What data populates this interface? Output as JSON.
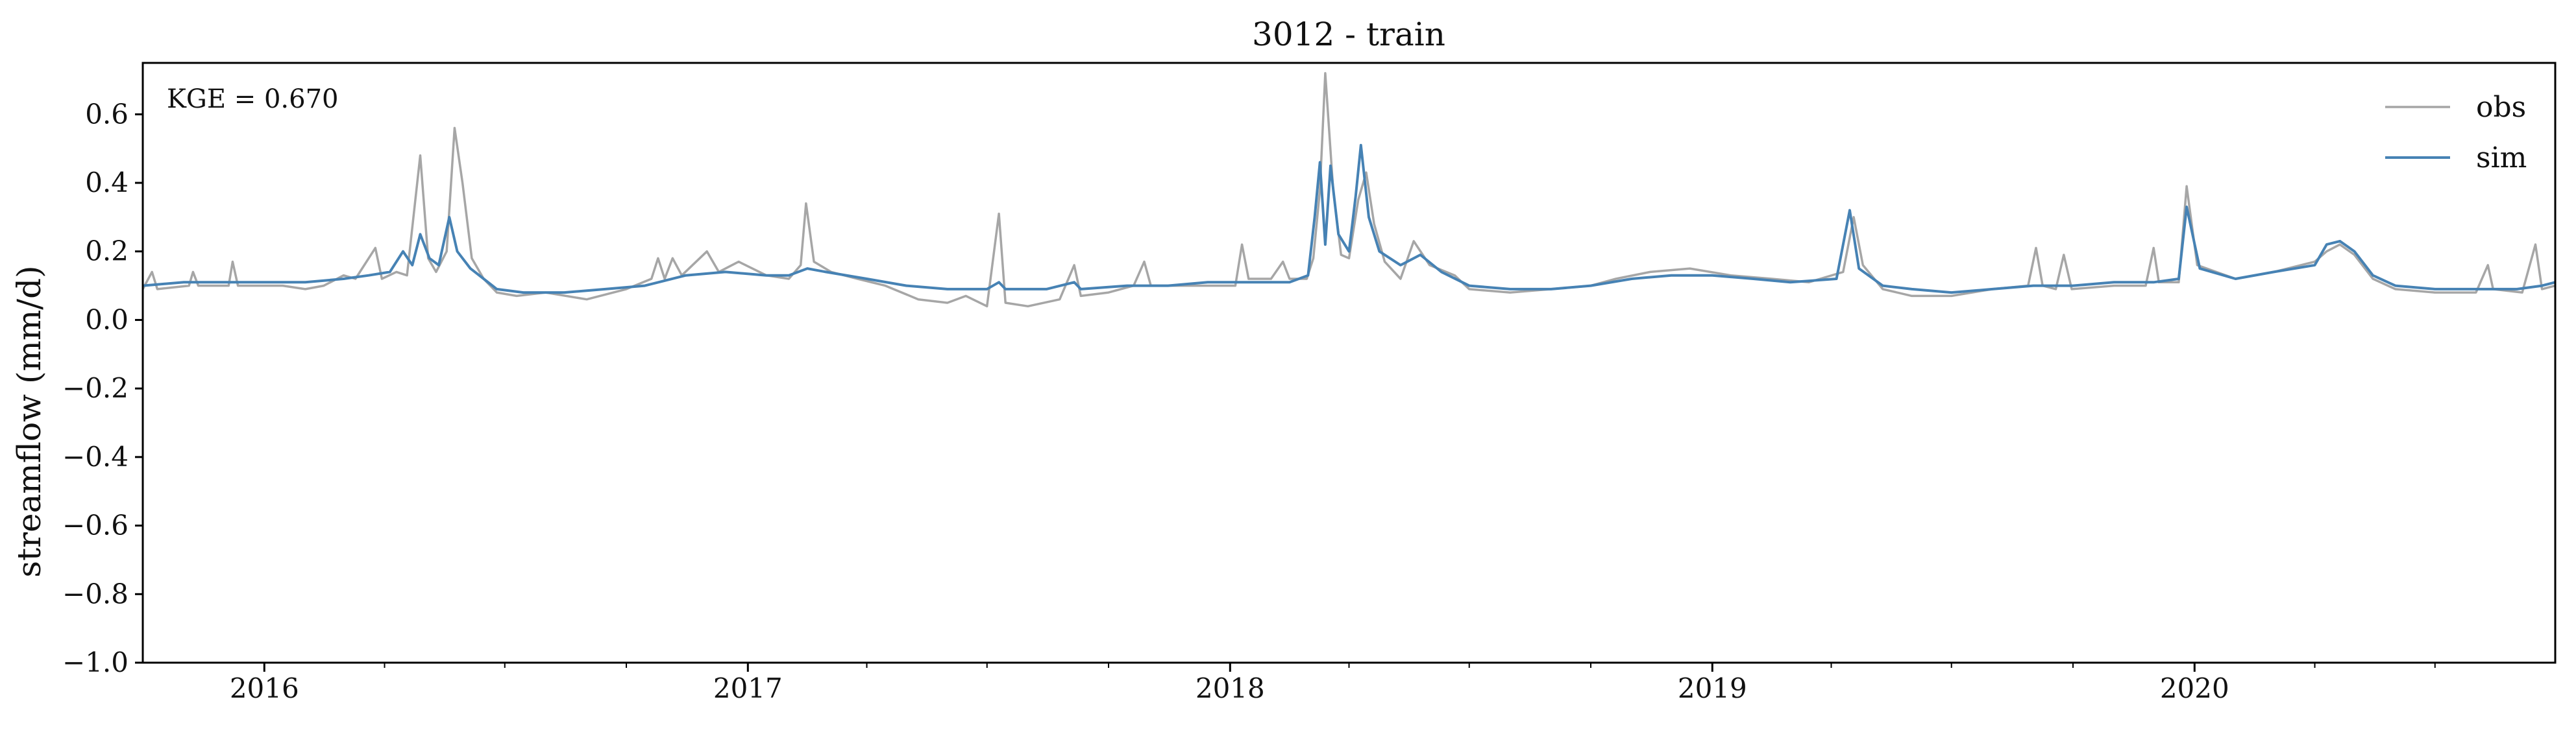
{
  "chart_data": {
    "type": "line",
    "title": "3012 - train",
    "xlabel": "",
    "ylabel": "streamflow (mm/d)",
    "annotation": "KGE = 0.670",
    "x_range": [
      "2015-10-01",
      "2020-09-30"
    ],
    "ylim": [
      -1.0,
      0.75
    ],
    "y_ticks": [
      0.6,
      0.4,
      0.2,
      0.0,
      -0.2,
      -0.4,
      -0.6,
      -0.8,
      -1.0
    ],
    "y_tick_labels": [
      "0.6",
      "0.4",
      "0.2",
      "0.0",
      "−0.2",
      "−0.4",
      "−0.6",
      "−0.8",
      "−1.0"
    ],
    "x_ticks": [
      "2016-01-01",
      "2017-01-01",
      "2018-01-01",
      "2019-01-01",
      "2020-01-01"
    ],
    "x_tick_labels": [
      "2016",
      "2017",
      "2018",
      "2019",
      "2020"
    ],
    "grid": false,
    "legend_position": "top-right",
    "series": [
      {
        "name": "obs",
        "color": "#a6a6a6",
        "points": [
          [
            "2015-10-01",
            0.09
          ],
          [
            "2015-10-08",
            0.14
          ],
          [
            "2015-10-12",
            0.09
          ],
          [
            "2015-11-05",
            0.1
          ],
          [
            "2015-11-08",
            0.14
          ],
          [
            "2015-11-12",
            0.1
          ],
          [
            "2015-12-05",
            0.1
          ],
          [
            "2015-12-08",
            0.17
          ],
          [
            "2015-12-12",
            0.1
          ],
          [
            "2016-01-15",
            0.1
          ],
          [
            "2016-02-01",
            0.09
          ],
          [
            "2016-02-15",
            0.1
          ],
          [
            "2016-03-01",
            0.13
          ],
          [
            "2016-03-10",
            0.12
          ],
          [
            "2016-03-25",
            0.21
          ],
          [
            "2016-03-30",
            0.12
          ],
          [
            "2016-04-10",
            0.14
          ],
          [
            "2016-04-18",
            0.13
          ],
          [
            "2016-04-28",
            0.48
          ],
          [
            "2016-05-04",
            0.18
          ],
          [
            "2016-05-10",
            0.14
          ],
          [
            "2016-05-18",
            0.2
          ],
          [
            "2016-05-24",
            0.56
          ],
          [
            "2016-05-30",
            0.4
          ],
          [
            "2016-06-06",
            0.18
          ],
          [
            "2016-06-15",
            0.12
          ],
          [
            "2016-06-25",
            0.08
          ],
          [
            "2016-07-10",
            0.07
          ],
          [
            "2016-08-01",
            0.08
          ],
          [
            "2016-09-01",
            0.06
          ],
          [
            "2016-10-01",
            0.09
          ],
          [
            "2016-10-20",
            0.12
          ],
          [
            "2016-10-25",
            0.18
          ],
          [
            "2016-10-30",
            0.12
          ],
          [
            "2016-11-05",
            0.18
          ],
          [
            "2016-11-12",
            0.13
          ],
          [
            "2016-12-01",
            0.2
          ],
          [
            "2016-12-10",
            0.14
          ],
          [
            "2016-12-25",
            0.17
          ],
          [
            "2017-01-15",
            0.13
          ],
          [
            "2017-02-01",
            0.12
          ],
          [
            "2017-02-10",
            0.16
          ],
          [
            "2017-02-14",
            0.34
          ],
          [
            "2017-02-20",
            0.17
          ],
          [
            "2017-03-05",
            0.14
          ],
          [
            "2017-03-25",
            0.12
          ],
          [
            "2017-04-15",
            0.1
          ],
          [
            "2017-05-10",
            0.06
          ],
          [
            "2017-06-01",
            0.05
          ],
          [
            "2017-06-15",
            0.07
          ],
          [
            "2017-07-01",
            0.04
          ],
          [
            "2017-07-10",
            0.31
          ],
          [
            "2017-07-15",
            0.05
          ],
          [
            "2017-08-01",
            0.04
          ],
          [
            "2017-08-25",
            0.06
          ],
          [
            "2017-09-05",
            0.16
          ],
          [
            "2017-09-10",
            0.07
          ],
          [
            "2017-10-01",
            0.08
          ],
          [
            "2017-10-20",
            0.1
          ],
          [
            "2017-10-28",
            0.17
          ],
          [
            "2017-11-02",
            0.1
          ],
          [
            "2017-12-15",
            0.1
          ],
          [
            "2018-01-05",
            0.1
          ],
          [
            "2018-01-10",
            0.22
          ],
          [
            "2018-01-15",
            0.12
          ],
          [
            "2018-02-01",
            0.12
          ],
          [
            "2018-02-10",
            0.17
          ],
          [
            "2018-02-15",
            0.12
          ],
          [
            "2018-02-28",
            0.12
          ],
          [
            "2018-03-05",
            0.18
          ],
          [
            "2018-03-10",
            0.38
          ],
          [
            "2018-03-14",
            0.72
          ],
          [
            "2018-03-20",
            0.38
          ],
          [
            "2018-03-26",
            0.19
          ],
          [
            "2018-04-01",
            0.18
          ],
          [
            "2018-04-08",
            0.35
          ],
          [
            "2018-04-14",
            0.43
          ],
          [
            "2018-04-20",
            0.28
          ],
          [
            "2018-04-28",
            0.17
          ],
          [
            "2018-05-10",
            0.12
          ],
          [
            "2018-05-20",
            0.23
          ],
          [
            "2018-06-01",
            0.16
          ],
          [
            "2018-06-20",
            0.13
          ],
          [
            "2018-07-01",
            0.09
          ],
          [
            "2018-08-01",
            0.08
          ],
          [
            "2018-09-01",
            0.09
          ],
          [
            "2018-10-01",
            0.1
          ],
          [
            "2018-10-20",
            0.12
          ],
          [
            "2018-11-15",
            0.14
          ],
          [
            "2018-12-15",
            0.15
          ],
          [
            "2019-01-15",
            0.13
          ],
          [
            "2019-02-15",
            0.12
          ],
          [
            "2019-03-15",
            0.11
          ],
          [
            "2019-04-10",
            0.14
          ],
          [
            "2019-04-18",
            0.3
          ],
          [
            "2019-04-25",
            0.16
          ],
          [
            "2019-05-10",
            0.09
          ],
          [
            "2019-06-01",
            0.07
          ],
          [
            "2019-07-01",
            0.07
          ],
          [
            "2019-08-01",
            0.09
          ],
          [
            "2019-08-28",
            0.1
          ],
          [
            "2019-09-03",
            0.21
          ],
          [
            "2019-09-08",
            0.1
          ],
          [
            "2019-09-18",
            0.09
          ],
          [
            "2019-09-24",
            0.19
          ],
          [
            "2019-09-30",
            0.09
          ],
          [
            "2019-11-01",
            0.1
          ],
          [
            "2019-11-25",
            0.1
          ],
          [
            "2019-12-01",
            0.21
          ],
          [
            "2019-12-05",
            0.11
          ],
          [
            "2019-12-20",
            0.11
          ],
          [
            "2019-12-26",
            0.39
          ],
          [
            "2020-01-03",
            0.16
          ],
          [
            "2020-02-01",
            0.12
          ],
          [
            "2020-03-01",
            0.14
          ],
          [
            "2020-04-01",
            0.17
          ],
          [
            "2020-04-10",
            0.2
          ],
          [
            "2020-04-20",
            0.22
          ],
          [
            "2020-05-01",
            0.19
          ],
          [
            "2020-05-15",
            0.12
          ],
          [
            "2020-06-01",
            0.09
          ],
          [
            "2020-07-01",
            0.08
          ],
          [
            "2020-08-01",
            0.08
          ],
          [
            "2020-08-10",
            0.16
          ],
          [
            "2020-08-14",
            0.09
          ],
          [
            "2020-09-05",
            0.08
          ],
          [
            "2020-09-15",
            0.22
          ],
          [
            "2020-09-20",
            0.09
          ],
          [
            "2020-09-30",
            0.1
          ]
        ]
      },
      {
        "name": "sim",
        "color": "#4682b4",
        "points": [
          [
            "2015-10-01",
            0.1
          ],
          [
            "2015-11-01",
            0.11
          ],
          [
            "2015-12-01",
            0.11
          ],
          [
            "2016-01-01",
            0.11
          ],
          [
            "2016-02-01",
            0.11
          ],
          [
            "2016-03-01",
            0.12
          ],
          [
            "2016-03-20",
            0.13
          ],
          [
            "2016-04-05",
            0.14
          ],
          [
            "2016-04-15",
            0.2
          ],
          [
            "2016-04-22",
            0.16
          ],
          [
            "2016-04-28",
            0.25
          ],
          [
            "2016-05-05",
            0.18
          ],
          [
            "2016-05-12",
            0.16
          ],
          [
            "2016-05-20",
            0.3
          ],
          [
            "2016-05-26",
            0.2
          ],
          [
            "2016-06-05",
            0.15
          ],
          [
            "2016-06-15",
            0.12
          ],
          [
            "2016-06-25",
            0.09
          ],
          [
            "2016-07-15",
            0.08
          ],
          [
            "2016-08-15",
            0.08
          ],
          [
            "2016-09-15",
            0.09
          ],
          [
            "2016-10-15",
            0.1
          ],
          [
            "2016-11-15",
            0.13
          ],
          [
            "2016-12-15",
            0.14
          ],
          [
            "2017-01-15",
            0.13
          ],
          [
            "2017-02-01",
            0.13
          ],
          [
            "2017-02-15",
            0.15
          ],
          [
            "2017-03-01",
            0.14
          ],
          [
            "2017-04-01",
            0.12
          ],
          [
            "2017-05-01",
            0.1
          ],
          [
            "2017-06-01",
            0.09
          ],
          [
            "2017-07-01",
            0.09
          ],
          [
            "2017-07-10",
            0.11
          ],
          [
            "2017-07-15",
            0.09
          ],
          [
            "2017-08-15",
            0.09
          ],
          [
            "2017-09-05",
            0.11
          ],
          [
            "2017-09-10",
            0.09
          ],
          [
            "2017-10-15",
            0.1
          ],
          [
            "2017-11-15",
            0.1
          ],
          [
            "2017-12-15",
            0.11
          ],
          [
            "2018-01-15",
            0.11
          ],
          [
            "2018-02-15",
            0.11
          ],
          [
            "2018-03-01",
            0.13
          ],
          [
            "2018-03-06",
            0.3
          ],
          [
            "2018-03-10",
            0.46
          ],
          [
            "2018-03-14",
            0.22
          ],
          [
            "2018-03-18",
            0.45
          ],
          [
            "2018-03-24",
            0.25
          ],
          [
            "2018-04-01",
            0.2
          ],
          [
            "2018-04-06",
            0.36
          ],
          [
            "2018-04-10",
            0.51
          ],
          [
            "2018-04-16",
            0.3
          ],
          [
            "2018-04-24",
            0.2
          ],
          [
            "2018-05-10",
            0.16
          ],
          [
            "2018-05-25",
            0.19
          ],
          [
            "2018-06-10",
            0.14
          ],
          [
            "2018-07-01",
            0.1
          ],
          [
            "2018-08-01",
            0.09
          ],
          [
            "2018-09-01",
            0.09
          ],
          [
            "2018-10-01",
            0.1
          ],
          [
            "2018-11-01",
            0.12
          ],
          [
            "2018-12-01",
            0.13
          ],
          [
            "2019-01-01",
            0.13
          ],
          [
            "2019-02-01",
            0.12
          ],
          [
            "2019-03-01",
            0.11
          ],
          [
            "2019-04-05",
            0.12
          ],
          [
            "2019-04-15",
            0.32
          ],
          [
            "2019-04-22",
            0.15
          ],
          [
            "2019-05-10",
            0.1
          ],
          [
            "2019-06-01",
            0.09
          ],
          [
            "2019-07-01",
            0.08
          ],
          [
            "2019-08-01",
            0.09
          ],
          [
            "2019-09-01",
            0.1
          ],
          [
            "2019-10-01",
            0.1
          ],
          [
            "2019-11-01",
            0.11
          ],
          [
            "2019-12-01",
            0.11
          ],
          [
            "2019-12-20",
            0.12
          ],
          [
            "2019-12-26",
            0.33
          ],
          [
            "2020-01-05",
            0.15
          ],
          [
            "2020-02-01",
            0.12
          ],
          [
            "2020-03-01",
            0.14
          ],
          [
            "2020-04-01",
            0.16
          ],
          [
            "2020-04-10",
            0.22
          ],
          [
            "2020-04-20",
            0.23
          ],
          [
            "2020-05-01",
            0.2
          ],
          [
            "2020-05-15",
            0.13
          ],
          [
            "2020-06-01",
            0.1
          ],
          [
            "2020-07-01",
            0.09
          ],
          [
            "2020-08-01",
            0.09
          ],
          [
            "2020-09-01",
            0.09
          ],
          [
            "2020-09-20",
            0.1
          ],
          [
            "2020-09-30",
            0.11
          ]
        ]
      }
    ]
  }
}
